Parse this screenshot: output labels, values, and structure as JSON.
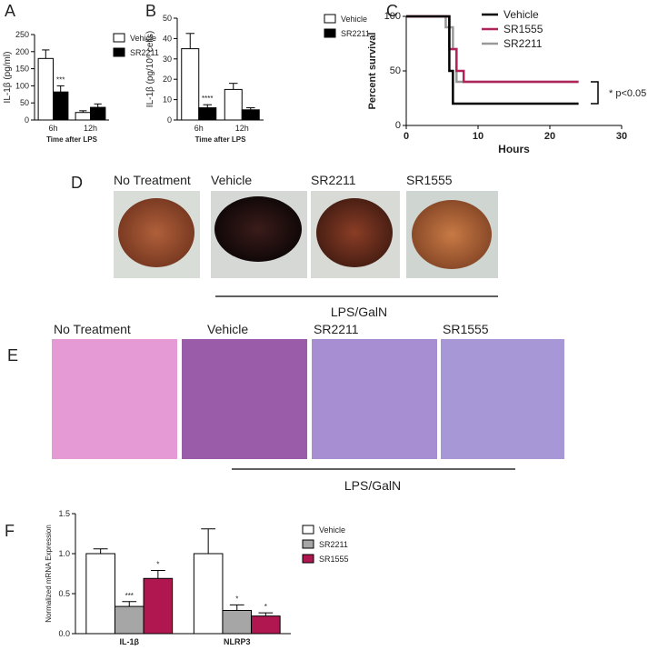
{
  "chart_data": [
    {
      "type": "bar",
      "panel_label": "A",
      "ylabel": "IL-1β (pg/ml)",
      "xlabel": "Time after LPS",
      "categories": [
        "6h",
        "12h"
      ],
      "series": [
        {
          "name": "Vehicle",
          "color": "#ffffff",
          "values": [
            180,
            22
          ],
          "errors": [
            25,
            5
          ],
          "significance": [
            null,
            null
          ]
        },
        {
          "name": "SR2211",
          "color": "#000000",
          "values": [
            82,
            37
          ],
          "errors": [
            18,
            10
          ],
          "significance": [
            "***",
            null
          ]
        }
      ],
      "ylim": [
        0,
        250
      ],
      "yticks": [
        0,
        50,
        100,
        150,
        200,
        250
      ]
    },
    {
      "type": "bar",
      "panel_label": "B",
      "ylabel": "IL-1β (pg/10⁶ cells)",
      "xlabel": "Time after LPS",
      "categories": [
        "6h",
        "12h"
      ],
      "series": [
        {
          "name": "Vehicle",
          "color": "#ffffff",
          "values": [
            35,
            15
          ],
          "errors": [
            7.5,
            3
          ],
          "significance": [
            null,
            null
          ]
        },
        {
          "name": "SR2211",
          "color": "#000000",
          "values": [
            6,
            5
          ],
          "errors": [
            1.5,
            1
          ],
          "significance": [
            "****",
            null
          ]
        }
      ],
      "ylim": [
        0,
        50
      ],
      "yticks": [
        0,
        10,
        20,
        30,
        40,
        50
      ]
    },
    {
      "type": "line",
      "panel_label": "C",
      "ylabel": "Percent survival",
      "xlabel": "Hours",
      "annotation": "* p<0.05",
      "series": [
        {
          "name": "Vehicle",
          "color": "#000000",
          "x": [
            0,
            6,
            6,
            6.5,
            6.5,
            24
          ],
          "values": [
            100,
            100,
            50,
            50,
            20,
            20
          ]
        },
        {
          "name": "SR1555",
          "color": "#b0245a",
          "x": [
            0,
            6,
            6,
            7,
            7,
            8,
            8,
            24
          ],
          "values": [
            100,
            100,
            70,
            70,
            50,
            50,
            40,
            40
          ]
        },
        {
          "name": "SR2211",
          "color": "#999999",
          "x": [
            0,
            5.5,
            5.5,
            6.5,
            6.5,
            7,
            7,
            24
          ],
          "values": [
            100,
            100,
            90,
            90,
            70,
            70,
            40,
            40
          ]
        }
      ],
      "xlim": [
        0,
        30
      ],
      "xticks": [
        0,
        10,
        20,
        30
      ],
      "ylim": [
        0,
        100
      ],
      "yticks": [
        0,
        50,
        100
      ]
    },
    {
      "type": "bar",
      "panel_label": "F",
      "ylabel": "Normalized mRNA Expression",
      "categories": [
        "IL-1β",
        "NLRP3"
      ],
      "series": [
        {
          "name": "Vehicle",
          "color": "#ffffff",
          "values": [
            1.0,
            1.0
          ],
          "errors": [
            0.06,
            0.31
          ],
          "significance": [
            null,
            null
          ]
        },
        {
          "name": "SR2211",
          "color": "#a6a6a6",
          "values": [
            0.34,
            0.29
          ],
          "errors": [
            0.06,
            0.07
          ],
          "significance": [
            "***",
            "*"
          ]
        },
        {
          "name": "SR1555",
          "color": "#b0164f",
          "values": [
            0.69,
            0.22
          ],
          "errors": [
            0.1,
            0.04
          ],
          "significance": [
            "*",
            "*"
          ]
        }
      ],
      "ylim": [
        0,
        1.5
      ],
      "yticks": [
        {
          "value": 0,
          "label": "0.0"
        },
        {
          "value": 0.5,
          "label": "0.5"
        },
        {
          "value": 1,
          "label": "1.0"
        },
        {
          "value": 1.5,
          "label": "1.5"
        }
      ]
    }
  ],
  "photo_panels": [
    {
      "panel_label": "D",
      "captions": [
        "No Treatment",
        "Vehicle",
        "SR2211",
        "SR1555"
      ],
      "group_label": "LPS/GalN"
    },
    {
      "panel_label": "E",
      "captions": [
        "No Treatment",
        "Vehicle",
        "SR2211",
        "SR1555"
      ],
      "group_label": "LPS/GalN"
    }
  ]
}
